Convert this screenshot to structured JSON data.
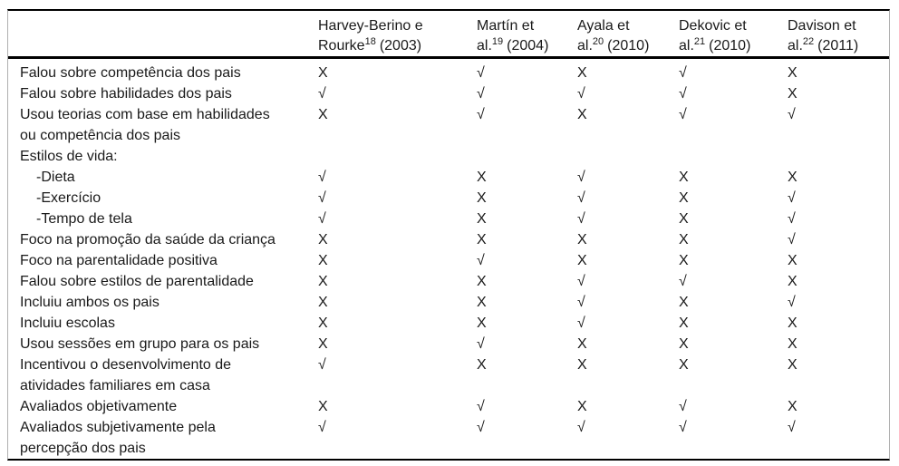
{
  "table": {
    "columns": [
      {
        "line1": "Harvey-Berino e",
        "name2": "Rourke",
        "ref": "18",
        "year": "(2003)"
      },
      {
        "line1": "Martín et",
        "name2": "al.",
        "ref": "19",
        "year": "(2004)"
      },
      {
        "line1": "Ayala et",
        "name2": "al.",
        "ref": "20",
        "year": "(2010)"
      },
      {
        "line1": "Dekovic et",
        "name2": "al.",
        "ref": "21",
        "year": "(2010)"
      },
      {
        "line1": "Davison et",
        "name2": "al.",
        "ref": "22",
        "year": "(2011)"
      }
    ],
    "rows": [
      {
        "label": "Falou sobre competência dos pais",
        "marks": [
          "X",
          "√",
          "X",
          "√",
          "X"
        ]
      },
      {
        "label": "Falou sobre habilidades dos pais",
        "marks": [
          "√",
          "√",
          "√",
          "√",
          "X"
        ]
      },
      {
        "label": "Usou teorias com base em habilidades\nou competência dos pais",
        "marks": [
          "X",
          "√",
          "X",
          "√",
          "√"
        ]
      },
      {
        "label": "Estilos de vida:",
        "marks": [
          "",
          "",
          "",
          "",
          ""
        ]
      },
      {
        "label": "-Dieta",
        "marks": [
          "√",
          "X",
          "√",
          "X",
          "X"
        ]
      },
      {
        "label": "-Exercício",
        "marks": [
          "√",
          "X",
          "√",
          "X",
          "√"
        ]
      },
      {
        "label": "-Tempo de tela",
        "marks": [
          "√",
          "X",
          "√",
          "X",
          "√"
        ]
      },
      {
        "label": "Foco na promoção da saúde da criança",
        "marks": [
          "X",
          "X",
          "X",
          "X",
          "√"
        ]
      },
      {
        "label": "Foco na parentalidade positiva",
        "marks": [
          "X",
          "√",
          "X",
          "X",
          "X"
        ]
      },
      {
        "label": "Falou sobre estilos de parentalidade",
        "marks": [
          "X",
          "X",
          "√",
          "√",
          "X"
        ]
      },
      {
        "label": "Incluiu ambos os pais",
        "marks": [
          "X",
          "X",
          "√",
          "X",
          "√"
        ]
      },
      {
        "label": "Incluiu escolas",
        "marks": [
          "X",
          "X",
          "√",
          "X",
          "X"
        ]
      },
      {
        "label": "Usou sessões em grupo para os pais",
        "marks": [
          "X",
          "√",
          "X",
          "X",
          "X"
        ]
      },
      {
        "label": "Incentivou o desenvolvimento de\natividades familiares em casa",
        "marks": [
          "√",
          "X",
          "X",
          "X",
          "X"
        ]
      },
      {
        "label": "Avaliados objetivamente",
        "marks": [
          "X",
          "√",
          "X",
          "√",
          "X"
        ]
      },
      {
        "label": "Avaliados subjetivamente pela\npercepção dos pais",
        "marks": [
          "√",
          "√",
          "√",
          "√",
          "√"
        ]
      }
    ],
    "mark_glyphs": {
      "present": "√",
      "absent": "X"
    }
  },
  "colors": {
    "text": "#1a1a1a",
    "rule_dark": "#000000",
    "rule_light": "#b0b0b0",
    "background": "#ffffff"
  }
}
